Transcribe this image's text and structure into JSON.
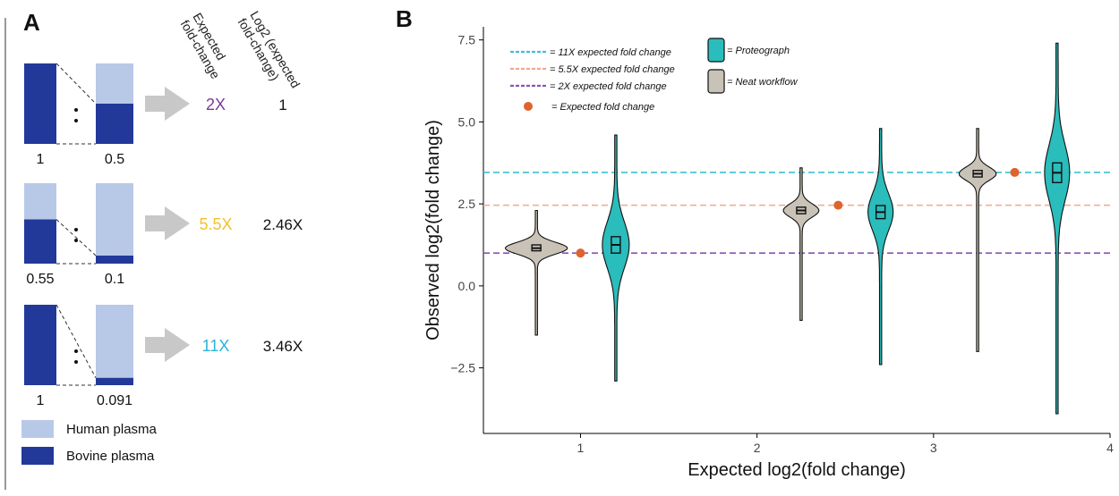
{
  "panel_a": {
    "letter": "A",
    "col_header_1": [
      "Expected",
      "fold-change"
    ],
    "col_header_2": [
      "Log2 (expected",
      "fold-change)"
    ],
    "rows": [
      {
        "left_label": "1",
        "right_label": "0.5",
        "left_fill": 1.0,
        "right_fill": 0.5,
        "fold": "2X",
        "fold_color": "#7b3a96",
        "log2": "1"
      },
      {
        "left_label": "0.55",
        "right_label": "0.1",
        "left_fill": 0.55,
        "right_fill": 0.1,
        "fold": "5.5X",
        "fold_color": "#f2c12e",
        "log2": "2.46X"
      },
      {
        "left_label": "1",
        "right_label": "0.091",
        "left_fill": 1.0,
        "right_fill": 0.091,
        "fold": "11X",
        "fold_color": "#2bb3d9",
        "log2": "3.46X"
      }
    ],
    "legend": [
      {
        "label": "Human plasma",
        "color": "#b8c9e8"
      },
      {
        "label": "Bovine plasma",
        "color": "#22399a"
      }
    ],
    "colors": {
      "human": "#b8c9e8",
      "bovine": "#22399a",
      "arrow": "#c8c8c8"
    }
  },
  "chart_data": {
    "type": "violin",
    "letter": "B",
    "title": "",
    "xlabel": "Expected log2(fold change)",
    "ylabel": "Observed log2(fold change)",
    "xlim": [
      0.45,
      4.0
    ],
    "ylim": [
      -4.5,
      7.9
    ],
    "x_ticks": [
      "1",
      "2",
      "3",
      "4"
    ],
    "x_tick_values": [
      1,
      2,
      3,
      4
    ],
    "y_ticks": [
      "−2.5",
      "0.0",
      "2.5",
      "5.0",
      "7.5"
    ],
    "y_tick_values": [
      -2.5,
      0,
      2.5,
      5.0,
      7.5
    ],
    "grid": false,
    "legend_position": "top-left",
    "reference_lines": [
      {
        "label": "= 11X expected fold change",
        "y": 3.46,
        "color": "#3fbfd6"
      },
      {
        "label": "= 5.5X expected fold change",
        "y": 2.46,
        "color": "#f2a98e"
      },
      {
        "label": "= 2X expected fold change",
        "y": 1.0,
        "color": "#8a52b5"
      }
    ],
    "expected_points": {
      "label": "= Expected fold change",
      "color": "#e0622c",
      "points": [
        [
          1.0,
          1.0
        ],
        [
          2.46,
          2.46
        ],
        [
          3.46,
          3.46
        ]
      ]
    },
    "series": [
      {
        "name": "= Neat workflow",
        "color": "#c9c2b6",
        "violins": [
          {
            "x": 0.75,
            "min": -1.5,
            "max": 2.3,
            "q1": 1.07,
            "median": 1.15,
            "q3": 1.25,
            "width": 0.34
          },
          {
            "x": 2.25,
            "min": -1.05,
            "max": 3.6,
            "q1": 2.2,
            "median": 2.3,
            "q3": 2.4,
            "width": 0.19
          },
          {
            "x": 3.25,
            "min": -2.0,
            "max": 4.8,
            "q1": 3.32,
            "median": 3.42,
            "q3": 3.52,
            "width": 0.2
          }
        ]
      },
      {
        "name": "= Proteograph",
        "color": "#2bbcbc",
        "violins": [
          {
            "x": 0.75,
            "min": -2.9,
            "max": 4.6,
            "q1": 1.0,
            "median": 1.25,
            "q3": 1.5,
            "width": 0.14
          },
          {
            "x": 2.25,
            "min": -2.4,
            "max": 4.8,
            "q1": 2.05,
            "median": 2.25,
            "q3": 2.45,
            "width": 0.13
          },
          {
            "x": 3.25,
            "min": -3.9,
            "max": 7.4,
            "q1": 3.15,
            "median": 3.45,
            "q3": 3.75,
            "width": 0.13
          }
        ]
      }
    ]
  }
}
